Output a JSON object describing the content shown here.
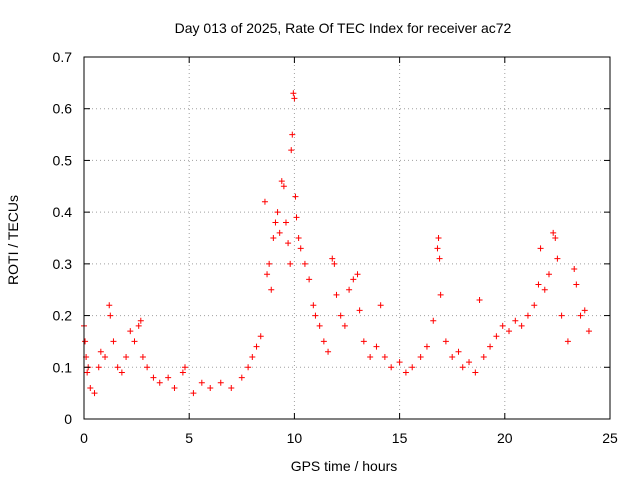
{
  "chart_data": {
    "type": "scatter",
    "title": "Day 013 of 2025, Rate Of TEC Index for receiver ac72",
    "xlabel": "GPS time / hours",
    "ylabel": "ROTI / TECUs",
    "xlim": [
      0,
      25
    ],
    "ylim": [
      0,
      0.7
    ],
    "x_ticks": [
      "0",
      "5",
      "10",
      "15",
      "20",
      "25"
    ],
    "y_ticks": [
      "0",
      "0.1",
      "0.2",
      "0.3",
      "0.4",
      "0.5",
      "0.6",
      "0.7"
    ],
    "grid": true,
    "marker": "+",
    "colors": {
      "series": "#ff0000",
      "grid": "#a0a0a0",
      "axis": "#000000"
    },
    "series": [
      {
        "points": [
          [
            0.0,
            0.18
          ],
          [
            0.05,
            0.15
          ],
          [
            0.1,
            0.12
          ],
          [
            0.15,
            0.09
          ],
          [
            0.2,
            0.1
          ],
          [
            0.3,
            0.06
          ],
          [
            0.5,
            0.05
          ],
          [
            0.7,
            0.1
          ],
          [
            0.8,
            0.13
          ],
          [
            1.0,
            0.12
          ],
          [
            1.2,
            0.22
          ],
          [
            1.25,
            0.2
          ],
          [
            1.4,
            0.15
          ],
          [
            1.6,
            0.1
          ],
          [
            1.8,
            0.09
          ],
          [
            2.0,
            0.12
          ],
          [
            2.2,
            0.17
          ],
          [
            2.4,
            0.15
          ],
          [
            2.6,
            0.18
          ],
          [
            2.7,
            0.19
          ],
          [
            2.8,
            0.12
          ],
          [
            3.0,
            0.1
          ],
          [
            3.3,
            0.08
          ],
          [
            3.6,
            0.07
          ],
          [
            4.0,
            0.08
          ],
          [
            4.3,
            0.06
          ],
          [
            4.7,
            0.09
          ],
          [
            4.8,
            0.1
          ],
          [
            5.2,
            0.05
          ],
          [
            5.6,
            0.07
          ],
          [
            6.0,
            0.06
          ],
          [
            6.5,
            0.07
          ],
          [
            7.0,
            0.06
          ],
          [
            7.5,
            0.08
          ],
          [
            7.8,
            0.1
          ],
          [
            8.0,
            0.12
          ],
          [
            8.2,
            0.14
          ],
          [
            8.4,
            0.16
          ],
          [
            8.6,
            0.42
          ],
          [
            8.7,
            0.28
          ],
          [
            8.8,
            0.3
          ],
          [
            8.9,
            0.25
          ],
          [
            9.0,
            0.35
          ],
          [
            9.1,
            0.38
          ],
          [
            9.2,
            0.4
          ],
          [
            9.3,
            0.36
          ],
          [
            9.4,
            0.46
          ],
          [
            9.5,
            0.45
          ],
          [
            9.6,
            0.38
          ],
          [
            9.7,
            0.34
          ],
          [
            9.8,
            0.3
          ],
          [
            9.85,
            0.52
          ],
          [
            9.9,
            0.55
          ],
          [
            9.95,
            0.63
          ],
          [
            10.0,
            0.62
          ],
          [
            10.05,
            0.43
          ],
          [
            10.1,
            0.39
          ],
          [
            10.2,
            0.35
          ],
          [
            10.3,
            0.33
          ],
          [
            10.5,
            0.3
          ],
          [
            10.7,
            0.27
          ],
          [
            10.9,
            0.22
          ],
          [
            11.0,
            0.2
          ],
          [
            11.2,
            0.18
          ],
          [
            11.4,
            0.15
          ],
          [
            11.6,
            0.13
          ],
          [
            11.8,
            0.31
          ],
          [
            11.9,
            0.3
          ],
          [
            12.0,
            0.24
          ],
          [
            12.2,
            0.2
          ],
          [
            12.4,
            0.18
          ],
          [
            12.6,
            0.25
          ],
          [
            12.8,
            0.27
          ],
          [
            13.0,
            0.28
          ],
          [
            13.1,
            0.21
          ],
          [
            13.3,
            0.15
          ],
          [
            13.6,
            0.12
          ],
          [
            13.9,
            0.14
          ],
          [
            14.1,
            0.22
          ],
          [
            14.3,
            0.12
          ],
          [
            14.6,
            0.1
          ],
          [
            15.0,
            0.11
          ],
          [
            15.3,
            0.09
          ],
          [
            15.6,
            0.1
          ],
          [
            16.0,
            0.12
          ],
          [
            16.3,
            0.14
          ],
          [
            16.6,
            0.19
          ],
          [
            16.8,
            0.33
          ],
          [
            16.85,
            0.35
          ],
          [
            16.9,
            0.31
          ],
          [
            16.95,
            0.24
          ],
          [
            17.2,
            0.15
          ],
          [
            17.5,
            0.12
          ],
          [
            17.8,
            0.13
          ],
          [
            18.0,
            0.1
          ],
          [
            18.3,
            0.11
          ],
          [
            18.6,
            0.09
          ],
          [
            18.8,
            0.23
          ],
          [
            19.0,
            0.12
          ],
          [
            19.3,
            0.14
          ],
          [
            19.6,
            0.16
          ],
          [
            19.9,
            0.18
          ],
          [
            20.2,
            0.17
          ],
          [
            20.5,
            0.19
          ],
          [
            20.8,
            0.18
          ],
          [
            21.1,
            0.2
          ],
          [
            21.4,
            0.22
          ],
          [
            21.6,
            0.26
          ],
          [
            21.7,
            0.33
          ],
          [
            21.9,
            0.25
          ],
          [
            22.1,
            0.28
          ],
          [
            22.3,
            0.36
          ],
          [
            22.4,
            0.35
          ],
          [
            22.5,
            0.31
          ],
          [
            22.7,
            0.2
          ],
          [
            23.0,
            0.15
          ],
          [
            23.3,
            0.29
          ],
          [
            23.4,
            0.26
          ],
          [
            23.6,
            0.2
          ],
          [
            23.8,
            0.21
          ],
          [
            24.0,
            0.17
          ]
        ]
      }
    ]
  }
}
